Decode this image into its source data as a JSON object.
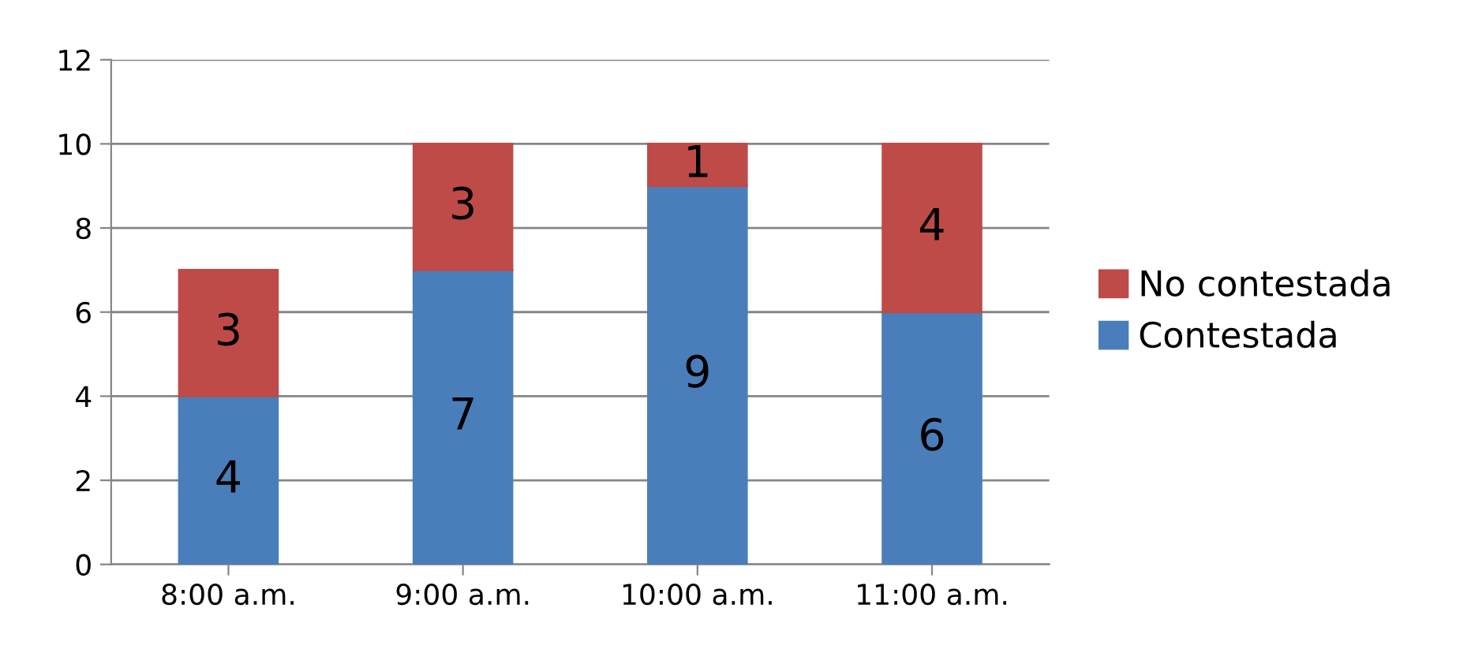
{
  "chart_data": {
    "type": "bar",
    "stacked": true,
    "categories": [
      "8:00 a.m.",
      "9:00 a.m.",
      "10:00 a.m.",
      "11:00 a.m."
    ],
    "series": [
      {
        "name": "Contestada",
        "color": "#4a7ebb",
        "values": [
          4,
          7,
          9,
          6
        ]
      },
      {
        "name": "No contestada",
        "color": "#be4b48",
        "values": [
          3,
          3,
          1,
          4
        ]
      }
    ],
    "ylim": [
      0,
      12
    ],
    "yticks": [
      0,
      2,
      4,
      6,
      8,
      10,
      12
    ],
    "grid": "y",
    "legend": "right",
    "data_labels": true
  }
}
